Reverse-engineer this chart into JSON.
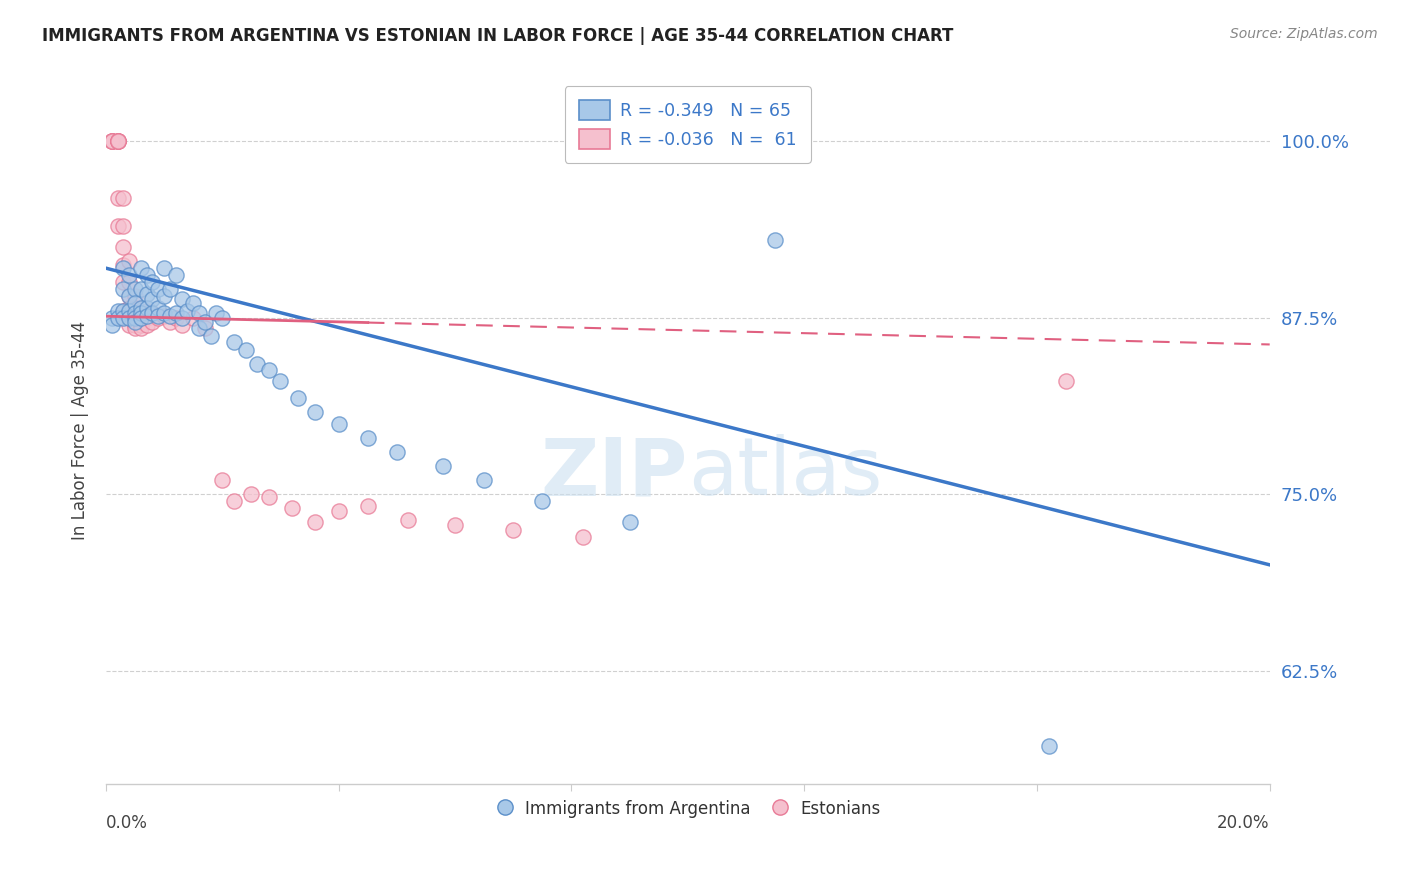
{
  "title": "IMMIGRANTS FROM ARGENTINA VS ESTONIAN IN LABOR FORCE | AGE 35-44 CORRELATION CHART",
  "source": "Source: ZipAtlas.com",
  "ylabel": "In Labor Force | Age 35-44",
  "ytick_labels": [
    "62.5%",
    "75.0%",
    "87.5%",
    "100.0%"
  ],
  "ytick_values": [
    0.625,
    0.75,
    0.875,
    1.0
  ],
  "xtick_labels": [
    "0.0%",
    "20.0%"
  ],
  "xtick_values": [
    0.0,
    0.2
  ],
  "xlim": [
    0.0,
    0.2
  ],
  "ylim": [
    0.545,
    1.045
  ],
  "legend_r_blue": "R = -0.349",
  "legend_n_blue": "N = 65",
  "legend_r_pink": "R = -0.036",
  "legend_n_pink": "N =  61",
  "blue_color": "#a8c8e8",
  "pink_color": "#f5c0ce",
  "blue_edge_color": "#5b8fc9",
  "pink_edge_color": "#e87a96",
  "blue_line_color": "#3c78c8",
  "pink_line_color": "#e06080",
  "watermark_color": "#cce0f0",
  "bg_color": "#ffffff",
  "grid_color": "#d0d0d0",
  "blue_scatter_x": [
    0.001,
    0.001,
    0.002,
    0.002,
    0.003,
    0.003,
    0.003,
    0.003,
    0.004,
    0.004,
    0.004,
    0.004,
    0.005,
    0.005,
    0.005,
    0.005,
    0.005,
    0.006,
    0.006,
    0.006,
    0.006,
    0.006,
    0.007,
    0.007,
    0.007,
    0.007,
    0.008,
    0.008,
    0.008,
    0.009,
    0.009,
    0.009,
    0.01,
    0.01,
    0.01,
    0.011,
    0.011,
    0.012,
    0.012,
    0.013,
    0.013,
    0.014,
    0.015,
    0.016,
    0.016,
    0.017,
    0.018,
    0.019,
    0.02,
    0.022,
    0.024,
    0.026,
    0.028,
    0.03,
    0.033,
    0.036,
    0.04,
    0.045,
    0.05,
    0.058,
    0.065,
    0.075,
    0.09,
    0.115,
    0.162
  ],
  "blue_scatter_y": [
    0.875,
    0.87,
    0.88,
    0.875,
    0.91,
    0.895,
    0.88,
    0.875,
    0.905,
    0.89,
    0.88,
    0.875,
    0.895,
    0.885,
    0.878,
    0.875,
    0.872,
    0.91,
    0.895,
    0.882,
    0.878,
    0.875,
    0.905,
    0.892,
    0.882,
    0.876,
    0.9,
    0.888,
    0.878,
    0.895,
    0.882,
    0.876,
    0.91,
    0.89,
    0.878,
    0.895,
    0.876,
    0.905,
    0.878,
    0.888,
    0.875,
    0.88,
    0.885,
    0.878,
    0.868,
    0.872,
    0.862,
    0.878,
    0.875,
    0.858,
    0.852,
    0.842,
    0.838,
    0.83,
    0.818,
    0.808,
    0.8,
    0.79,
    0.78,
    0.77,
    0.76,
    0.745,
    0.73,
    0.93,
    0.572
  ],
  "pink_scatter_x": [
    0.001,
    0.001,
    0.001,
    0.001,
    0.001,
    0.002,
    0.002,
    0.002,
    0.002,
    0.002,
    0.002,
    0.002,
    0.003,
    0.003,
    0.003,
    0.003,
    0.003,
    0.003,
    0.004,
    0.004,
    0.004,
    0.004,
    0.004,
    0.004,
    0.005,
    0.005,
    0.005,
    0.005,
    0.005,
    0.005,
    0.005,
    0.006,
    0.006,
    0.006,
    0.006,
    0.006,
    0.007,
    0.007,
    0.007,
    0.008,
    0.008,
    0.009,
    0.01,
    0.011,
    0.012,
    0.013,
    0.015,
    0.017,
    0.02,
    0.022,
    0.025,
    0.028,
    0.032,
    0.036,
    0.04,
    0.045,
    0.052,
    0.06,
    0.07,
    0.082,
    0.165
  ],
  "pink_scatter_y": [
    1.0,
    1.0,
    1.0,
    1.0,
    1.0,
    1.0,
    1.0,
    1.0,
    1.0,
    1.0,
    0.96,
    0.94,
    0.96,
    0.94,
    0.925,
    0.912,
    0.9,
    0.88,
    0.915,
    0.9,
    0.89,
    0.882,
    0.875,
    0.87,
    0.89,
    0.882,
    0.878,
    0.875,
    0.872,
    0.87,
    0.868,
    0.88,
    0.876,
    0.872,
    0.87,
    0.868,
    0.88,
    0.875,
    0.87,
    0.878,
    0.872,
    0.875,
    0.876,
    0.872,
    0.875,
    0.87,
    0.875,
    0.868,
    0.76,
    0.745,
    0.75,
    0.748,
    0.74,
    0.73,
    0.738,
    0.742,
    0.732,
    0.728,
    0.725,
    0.72,
    0.83
  ]
}
